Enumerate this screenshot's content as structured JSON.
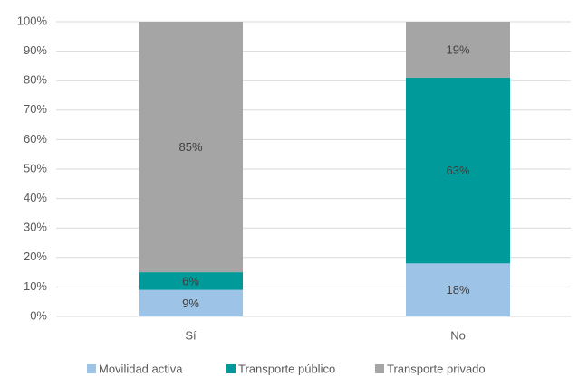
{
  "chart_data": {
    "type": "bar",
    "stacked": true,
    "categories": [
      "Sí",
      "No"
    ],
    "series": [
      {
        "name": "Movilidad activa",
        "color": "#9dc3e6",
        "values": [
          9,
          18
        ],
        "value_labels": [
          "9%",
          "18%"
        ]
      },
      {
        "name": "Transporte público",
        "color": "#009a9a",
        "values": [
          6,
          63
        ],
        "value_labels": [
          "6%",
          "63%"
        ]
      },
      {
        "name": "Transporte privado",
        "color": "#a5a5a5",
        "values": [
          85,
          19
        ],
        "value_labels": [
          "85%",
          "19%"
        ]
      }
    ],
    "ylim": [
      0,
      100
    ],
    "yticks": [
      {
        "value": 0,
        "label": "0%"
      },
      {
        "value": 10,
        "label": "10%"
      },
      {
        "value": 20,
        "label": "20%"
      },
      {
        "value": 30,
        "label": "30%"
      },
      {
        "value": 40,
        "label": "40%"
      },
      {
        "value": 50,
        "label": "50%"
      },
      {
        "value": 60,
        "label": "60%"
      },
      {
        "value": 70,
        "label": "70%"
      },
      {
        "value": 80,
        "label": "80%"
      },
      {
        "value": 90,
        "label": "90%"
      },
      {
        "value": 100,
        "label": "100%"
      }
    ],
    "grid": true,
    "legend": "bottom"
  }
}
